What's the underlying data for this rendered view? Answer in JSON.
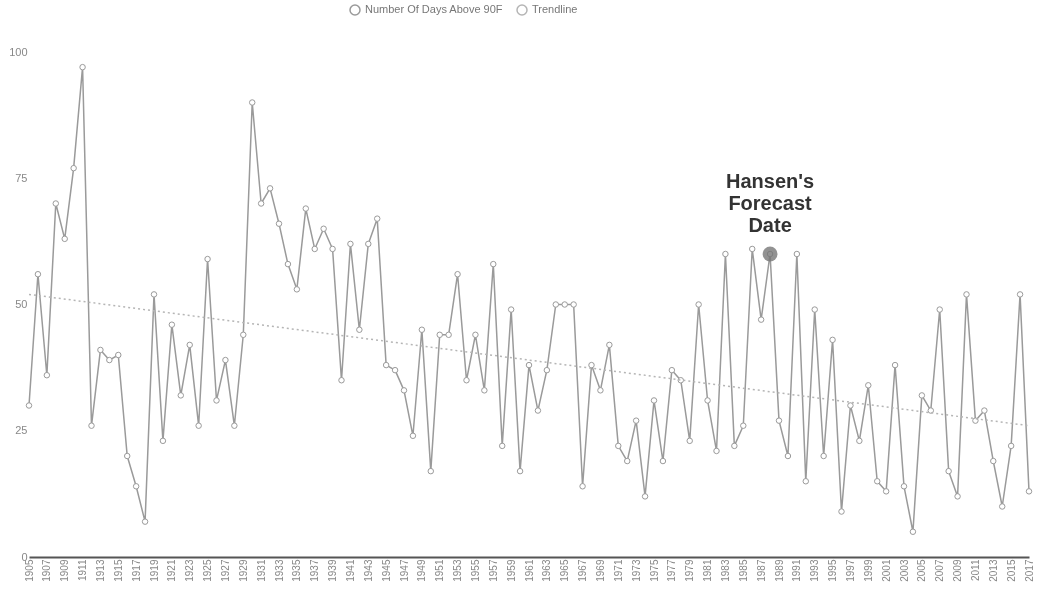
{
  "chart_data": {
    "type": "line",
    "x": [
      1905,
      1906,
      1907,
      1908,
      1909,
      1910,
      1911,
      1912,
      1913,
      1914,
      1915,
      1916,
      1917,
      1918,
      1919,
      1920,
      1921,
      1922,
      1923,
      1924,
      1925,
      1926,
      1927,
      1928,
      1929,
      1930,
      1931,
      1932,
      1933,
      1934,
      1935,
      1936,
      1937,
      1938,
      1939,
      1940,
      1941,
      1942,
      1943,
      1944,
      1945,
      1946,
      1947,
      1948,
      1949,
      1950,
      1951,
      1952,
      1953,
      1954,
      1955,
      1956,
      1957,
      1958,
      1959,
      1960,
      1961,
      1962,
      1963,
      1964,
      1965,
      1966,
      1967,
      1968,
      1969,
      1970,
      1971,
      1972,
      1973,
      1974,
      1975,
      1976,
      1977,
      1978,
      1979,
      1980,
      1981,
      1982,
      1983,
      1984,
      1985,
      1986,
      1987,
      1988,
      1989,
      1990,
      1991,
      1992,
      1993,
      1994,
      1995,
      1996,
      1997,
      1998,
      1999,
      2000,
      2001,
      2002,
      2003,
      2004,
      2005,
      2006,
      2007,
      2008,
      2009,
      2010,
      2011,
      2012,
      2013,
      2014,
      2015,
      2016,
      2017
    ],
    "xlim": [
      1905,
      2017
    ],
    "xticks": [
      1905,
      1907,
      1909,
      1911,
      1913,
      1915,
      1917,
      1919,
      1921,
      1923,
      1925,
      1927,
      1929,
      1931,
      1933,
      1935,
      1937,
      1939,
      1941,
      1943,
      1945,
      1947,
      1949,
      1951,
      1953,
      1955,
      1957,
      1959,
      1961,
      1963,
      1965,
      1967,
      1969,
      1971,
      1973,
      1975,
      1977,
      1979,
      1981,
      1983,
      1985,
      1987,
      1989,
      1991,
      1993,
      1995,
      1997,
      1999,
      2001,
      2003,
      2005,
      2007,
      2009,
      2011,
      2013,
      2015,
      2017
    ],
    "ylim": [
      0,
      100
    ],
    "yticks": [
      0,
      25,
      50,
      75,
      100
    ],
    "grid": false,
    "legend": "top",
    "marker": "circle",
    "series": [
      {
        "name": "Number Of Days Above 90F",
        "color": "#9a9a9a",
        "values": [
          30,
          56,
          36,
          70,
          63,
          77,
          97,
          26,
          41,
          39,
          40,
          20,
          14,
          7,
          52,
          23,
          46,
          32,
          42,
          26,
          59,
          31,
          39,
          26,
          44,
          90,
          70,
          73,
          66,
          58,
          53,
          69,
          61,
          65,
          61,
          35,
          62,
          45,
          62,
          67,
          38,
          37,
          33,
          24,
          45,
          17,
          44,
          44,
          56,
          35,
          44,
          33,
          58,
          22,
          49,
          17,
          38,
          29,
          37,
          50,
          50,
          50,
          14,
          38,
          33,
          42,
          22,
          19,
          27,
          12,
          31,
          19,
          37,
          35,
          23,
          50,
          31,
          21,
          60,
          22,
          26,
          61,
          47,
          60,
          27,
          20,
          60,
          15,
          49,
          20,
          43,
          9,
          30,
          23,
          34,
          15,
          13,
          38,
          14,
          5,
          32,
          29,
          49,
          17,
          12,
          52,
          27,
          29,
          19,
          10,
          22,
          52,
          13
        ]
      },
      {
        "name": "Trendline",
        "type": "line",
        "color": "#b5b5b5",
        "line_style": "dotted",
        "marker": "none",
        "x": [
          1905,
          2017
        ],
        "values": [
          52,
          26
        ]
      }
    ],
    "annotations": [
      {
        "text": "Hansen's Forecast Date",
        "x": 1988,
        "y": 60
      }
    ]
  }
}
